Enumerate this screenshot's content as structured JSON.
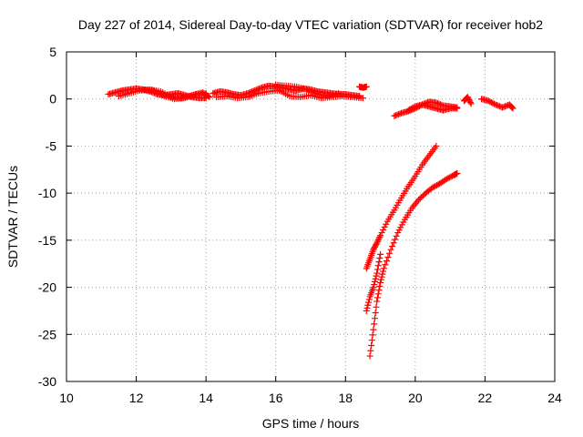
{
  "chart_data": {
    "type": "scatter",
    "title": "Day 227 of 2014, Sidereal Day-to-day VTEC variation (SDTVAR) for receiver hob2",
    "xlabel": "GPS time / hours",
    "ylabel": "SDTVAR / TECUs",
    "xlim": [
      10,
      24
    ],
    "ylim": [
      -30,
      5
    ],
    "xticks": [
      10,
      12,
      14,
      16,
      18,
      20,
      22,
      24
    ],
    "yticks": [
      5,
      0,
      -5,
      -10,
      -15,
      -20,
      -25,
      -30
    ],
    "grid": true,
    "marker": "+",
    "series_color": "#ff0000",
    "segments": [
      {
        "x": [
          11.2,
          11.4,
          11.6,
          11.8,
          12.0,
          12.2,
          12.4,
          12.6,
          12.8,
          13.0,
          13.2,
          13.4,
          13.6,
          13.8,
          14.0
        ],
        "y": [
          0.5,
          0.7,
          0.9,
          1.0,
          1.1,
          1.0,
          0.8,
          0.5,
          0.4,
          0.5,
          0.6,
          0.4,
          0.2,
          0.1,
          0.1
        ]
      },
      {
        "x": [
          11.5,
          11.8,
          12.1,
          12.4,
          12.7,
          13.0,
          13.3,
          13.6,
          13.9,
          14.1
        ],
        "y": [
          0.3,
          0.6,
          0.9,
          1.0,
          0.8,
          0.2,
          0.1,
          0.4,
          0.7,
          0.2
        ]
      },
      {
        "x": [
          12.2,
          12.5,
          12.8,
          13.1,
          13.4,
          13.7,
          14.0
        ],
        "y": [
          1.0,
          0.9,
          0.3,
          0.0,
          0.1,
          0.5,
          0.6
        ]
      },
      {
        "x": [
          14.2,
          14.4,
          14.6,
          14.8,
          15.0,
          15.2,
          15.4,
          15.6,
          15.8,
          16.0,
          16.2,
          16.4,
          16.6,
          16.8,
          17.0,
          17.2,
          17.4,
          17.6,
          17.8,
          18.0,
          18.2,
          18.4
        ],
        "y": [
          0.6,
          0.8,
          0.7,
          0.5,
          0.4,
          0.6,
          0.9,
          1.2,
          1.4,
          1.3,
          1.2,
          1.0,
          0.9,
          1.1,
          1.0,
          0.8,
          0.7,
          0.6,
          0.5,
          0.5,
          0.4,
          0.3
        ]
      },
      {
        "x": [
          14.3,
          14.6,
          14.9,
          15.2,
          15.5,
          15.8,
          16.1,
          16.4,
          16.7,
          17.0,
          17.3,
          17.6,
          17.9,
          18.2,
          18.5
        ],
        "y": [
          0.2,
          0.3,
          0.1,
          0.2,
          0.6,
          0.8,
          0.9,
          0.3,
          0.2,
          0.4,
          0.1,
          0.2,
          0.3,
          0.2,
          0.1
        ]
      },
      {
        "x": [
          16.0,
          16.3,
          16.6,
          16.9,
          17.2,
          17.5,
          17.8
        ],
        "y": [
          1.5,
          1.4,
          1.3,
          1.0,
          0.5,
          0.3,
          0.6
        ]
      },
      {
        "x": [
          18.4,
          18.5,
          18.6
        ],
        "y": [
          1.3,
          1.2,
          1.3
        ]
      },
      {
        "x": [
          19.4,
          19.6,
          19.8,
          20.0,
          20.2,
          20.4,
          20.6,
          20.8,
          21.0,
          21.2
        ],
        "y": [
          -1.8,
          -1.5,
          -1.3,
          -1.0,
          -0.6,
          -0.3,
          -0.4,
          -0.7,
          -0.8,
          -0.9
        ]
      },
      {
        "x": [
          19.8,
          20.0,
          20.2,
          20.4,
          20.6,
          20.8,
          21.0,
          21.2
        ],
        "y": [
          -1.2,
          -0.8,
          -0.6,
          -0.8,
          -1.0,
          -1.2,
          -1.0,
          -1.0
        ]
      },
      {
        "x": [
          21.4,
          21.5,
          21.6
        ],
        "y": [
          -0.2,
          0.2,
          -0.5
        ]
      },
      {
        "x": [
          21.9,
          22.1,
          22.3,
          22.5,
          22.7,
          22.8
        ],
        "y": [
          0.0,
          -0.2,
          -0.6,
          -0.9,
          -0.6,
          -1.0
        ]
      },
      {
        "x": [
          18.6,
          18.7,
          18.8,
          18.9,
          19.0,
          19.2,
          19.4,
          19.6,
          19.8,
          20.0,
          20.2,
          20.4,
          20.6
        ],
        "y": [
          -18.0,
          -17.0,
          -16.0,
          -15.3,
          -14.5,
          -13.0,
          -11.8,
          -10.5,
          -9.3,
          -8.2,
          -7.0,
          -6.0,
          -5.0
        ]
      },
      {
        "x": [
          18.7,
          18.8,
          18.9,
          19.0,
          19.1,
          19.3,
          19.5,
          19.7,
          19.9,
          20.1,
          20.3,
          20.5,
          20.7,
          20.9,
          21.1,
          21.2
        ],
        "y": [
          -27.3,
          -24.5,
          -21.5,
          -19.5,
          -18.0,
          -16.0,
          -14.2,
          -12.8,
          -11.6,
          -10.7,
          -10.0,
          -9.4,
          -9.0,
          -8.5,
          -8.1,
          -7.9
        ]
      },
      {
        "x": [
          18.6,
          18.7,
          18.8,
          18.9,
          19.0
        ],
        "y": [
          -22.5,
          -21.0,
          -20.0,
          -18.5,
          -16.5
        ]
      }
    ]
  }
}
